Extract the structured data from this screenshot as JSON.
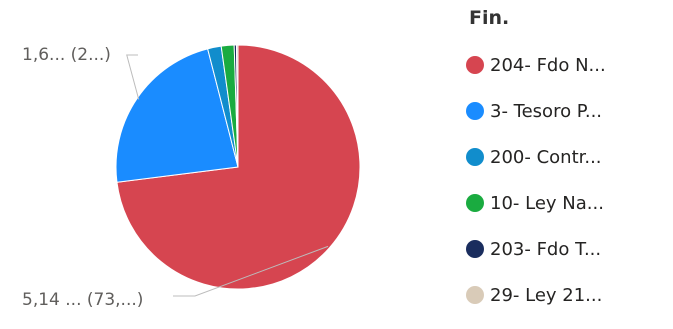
{
  "chart_data": {
    "type": "pie",
    "legend_title": "Fin.",
    "legend_position": "right",
    "slices": [
      {
        "label": "204- Fdo N...",
        "value": 73.0,
        "color": "#d64550"
      },
      {
        "label": "3- Tesoro P...",
        "value": 23.0,
        "color": "#1a8cff"
      },
      {
        "label": "200- Contr...",
        "value": 1.8,
        "color": "#118dcc"
      },
      {
        "label": "10- Ley Na...",
        "value": 1.7,
        "color": "#1aab40"
      },
      {
        "label": "203- Fdo T...",
        "value": 0.3,
        "color": "#1a2d5e"
      },
      {
        "label": "29- Ley 21...",
        "value": 0.2,
        "color": "#d9cbb8"
      }
    ],
    "data_labels": [
      {
        "text": "1,6... (2...)",
        "slice": 1
      },
      {
        "text": "5,14 ... (73,...)",
        "slice": 0
      }
    ]
  }
}
